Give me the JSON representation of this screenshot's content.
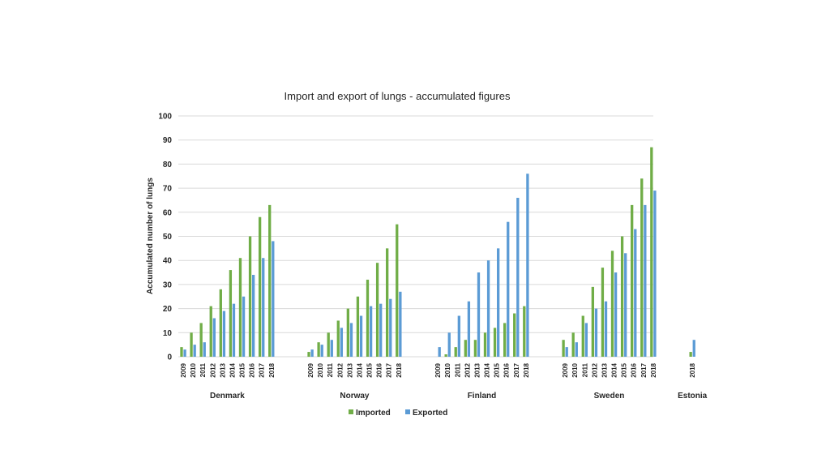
{
  "chart_data": {
    "type": "bar",
    "title": "Import and export of lungs - accumulated figures",
    "ylabel": "Accumulated number of lungs",
    "xlabel": "",
    "ylim": [
      0,
      100
    ],
    "yticks": [
      0,
      10,
      20,
      30,
      40,
      50,
      60,
      70,
      80,
      90,
      100
    ],
    "grid": true,
    "legend_position": "bottom",
    "colors": {
      "Imported": "#70ad47",
      "Exported": "#5b9bd5",
      "grid": "#d9d9d9"
    },
    "groups": [
      {
        "name": "Denmark",
        "years": [
          "2009",
          "2010",
          "2011",
          "2012",
          "2013",
          "2014",
          "2015",
          "2016",
          "2017",
          "2018"
        ],
        "series": [
          {
            "name": "Imported",
            "values": [
              4,
              10,
              14,
              21,
              28,
              36,
              41,
              50,
              58,
              63
            ]
          },
          {
            "name": "Exported",
            "values": [
              3,
              5,
              6,
              16,
              19,
              22,
              25,
              34,
              41,
              48
            ]
          }
        ]
      },
      {
        "name": "Norway",
        "years": [
          "2009",
          "2010",
          "2011",
          "2012",
          "2013",
          "2014",
          "2015",
          "2016",
          "2017",
          "2018"
        ],
        "series": [
          {
            "name": "Imported",
            "values": [
              2,
              6,
              10,
              15,
              20,
              25,
              32,
              39,
              45,
              55
            ]
          },
          {
            "name": "Exported",
            "values": [
              3,
              5,
              7,
              12,
              14,
              17,
              21,
              22,
              24,
              27
            ]
          }
        ]
      },
      {
        "name": "Finland",
        "years": [
          "2009",
          "2010",
          "2011",
          "2012",
          "2013",
          "2014",
          "2015",
          "2016",
          "2017",
          "2018"
        ],
        "series": [
          {
            "name": "Imported",
            "values": [
              0,
              1,
              4,
              7,
              7,
              10,
              12,
              14,
              18,
              21
            ]
          },
          {
            "name": "Exported",
            "values": [
              4,
              10,
              17,
              23,
              35,
              40,
              45,
              56,
              66,
              76
            ]
          }
        ]
      },
      {
        "name": "Sweden",
        "years": [
          "2009",
          "2010",
          "2011",
          "2012",
          "2013",
          "2014",
          "2015",
          "2016",
          "2017",
          "2018"
        ],
        "series": [
          {
            "name": "Imported",
            "values": [
              7,
              10,
              17,
              29,
              37,
              44,
              50,
              63,
              74,
              87
            ]
          },
          {
            "name": "Exported",
            "values": [
              4,
              6,
              14,
              20,
              23,
              35,
              43,
              53,
              63,
              69
            ]
          }
        ]
      },
      {
        "name": "Estonia",
        "years": [
          "2018"
        ],
        "series": [
          {
            "name": "Imported",
            "values": [
              2
            ]
          },
          {
            "name": "Exported",
            "values": [
              7
            ]
          }
        ]
      }
    ]
  }
}
